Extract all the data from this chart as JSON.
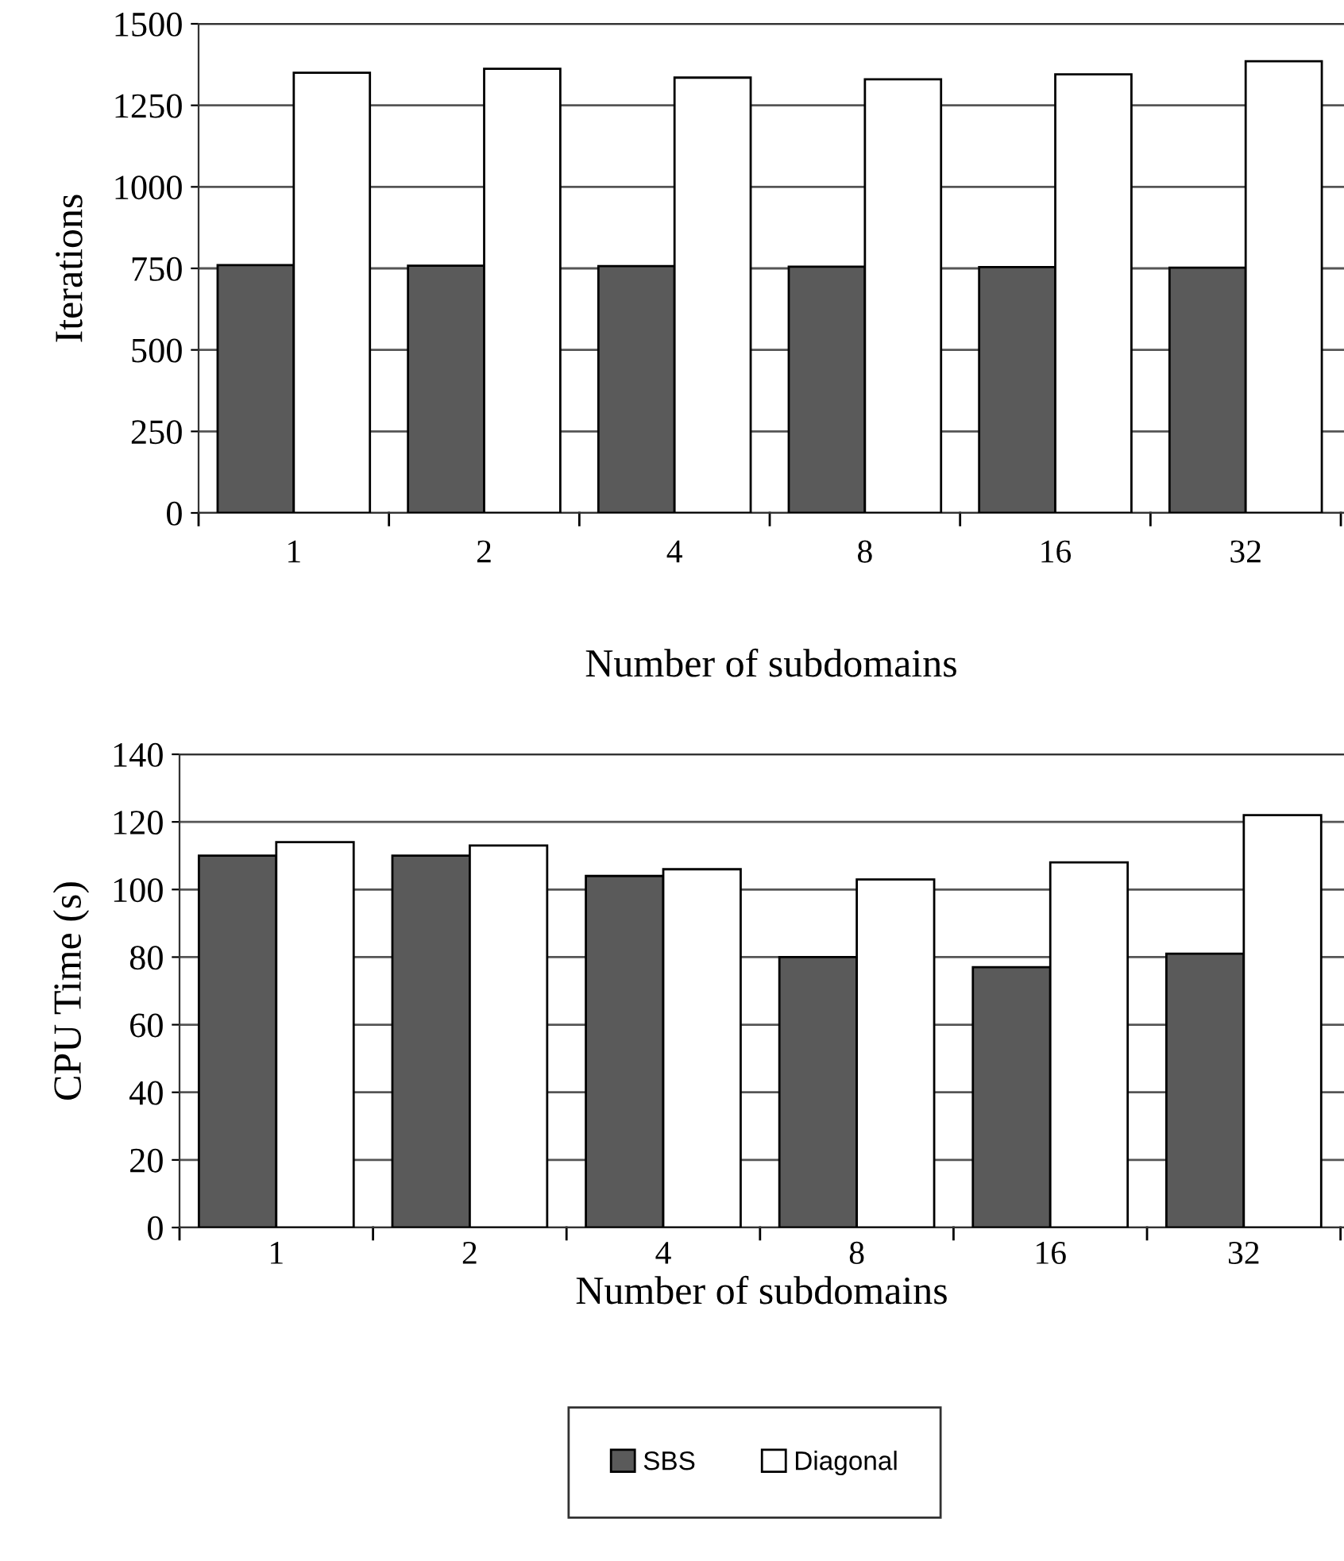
{
  "chart_data": [
    {
      "type": "bar",
      "categories": [
        "1",
        "2",
        "4",
        "8",
        "16",
        "32"
      ],
      "xlabel": "Number of subdomains",
      "ylabel": "Iterations",
      "ylim": [
        0,
        1500
      ],
      "yticks": [
        0,
        250,
        500,
        750,
        1000,
        1250,
        1500
      ],
      "grid": "y",
      "legend": false,
      "series": [
        {
          "color": "#5a5a5a",
          "values": [
            760,
            758,
            757,
            755,
            754,
            752
          ]
        },
        {
          "color": "#ffffff",
          "values": [
            1350,
            1362,
            1335,
            1330,
            1345,
            1385
          ]
        }
      ]
    },
    {
      "type": "bar",
      "categories": [
        "1",
        "2",
        "4",
        "8",
        "16",
        "32"
      ],
      "xlabel": "Number of subdomains",
      "ylabel": "CPU Time (s)",
      "ylim": [
        0,
        140
      ],
      "yticks": [
        0,
        20,
        40,
        60,
        80,
        100,
        120,
        140
      ],
      "grid": "y",
      "legend": "bottom",
      "series": [
        {
          "name": "SBS",
          "color": "#5a5a5a",
          "values": [
            110,
            110,
            104,
            80,
            77,
            81
          ]
        },
        {
          "name": "Diagonal",
          "color": "#ffffff",
          "values": [
            114,
            113,
            106,
            103,
            108,
            122
          ]
        }
      ]
    }
  ]
}
